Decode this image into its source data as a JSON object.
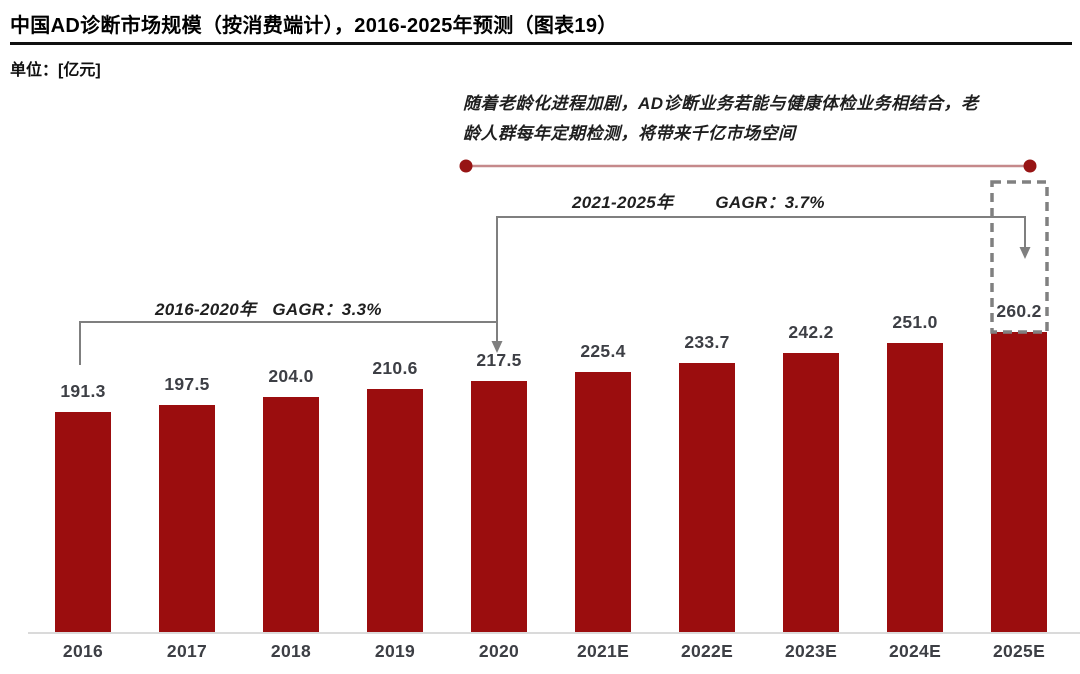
{
  "header": {
    "title": "中国AD诊断市场规模（按消费端计），2016-2025年预测（图表19）",
    "unit": "单位：[亿元]"
  },
  "annotation": {
    "line1": "随着老龄化进程加剧，AD诊断业务若能与健康体检业务相结合，老",
    "line2": "龄人群每年定期检测，将带来千亿市场空间"
  },
  "cagr": [
    {
      "period": "2016-2020年",
      "value": "GAGR：3.3%"
    },
    {
      "period": "2021-2025年",
      "value": "GAGR：3.7%"
    }
  ],
  "colors": {
    "bar": "#9B0D0E",
    "endpoint_dot": "#971414",
    "connector_line": "#C5898B",
    "bracket_gray": "#7F7F7F",
    "dashed_box_gray": "#808080",
    "axis_gray": "#DADADA",
    "label_gray": "#3D3F45"
  },
  "chart_data": {
    "type": "bar",
    "title": "中国AD诊断市场规模（按消费端计），2016-2025年预测（图表19）",
    "xlabel": "",
    "ylabel": "亿元",
    "categories": [
      "2016",
      "2017",
      "2018",
      "2019",
      "2020",
      "2021E",
      "2022E",
      "2023E",
      "2024E",
      "2025E"
    ],
    "values": [
      191.3,
      197.5,
      204.0,
      210.6,
      217.5,
      225.4,
      233.7,
      242.2,
      251.0,
      260.2
    ],
    "value_labels": [
      "191.3",
      "197.5",
      "204.0",
      "210.6",
      "217.5",
      "225.4",
      "233.7",
      "242.2",
      "251.0",
      "260.2"
    ],
    "highlighted_category": "2025E",
    "ylim": [
      0,
      280
    ],
    "grid": false,
    "legend": false,
    "annotations": [
      {
        "range": "2016-2020年",
        "label": "GAGR：3.3%"
      },
      {
        "range": "2021-2025年",
        "label": "GAGR：3.7%"
      }
    ]
  }
}
